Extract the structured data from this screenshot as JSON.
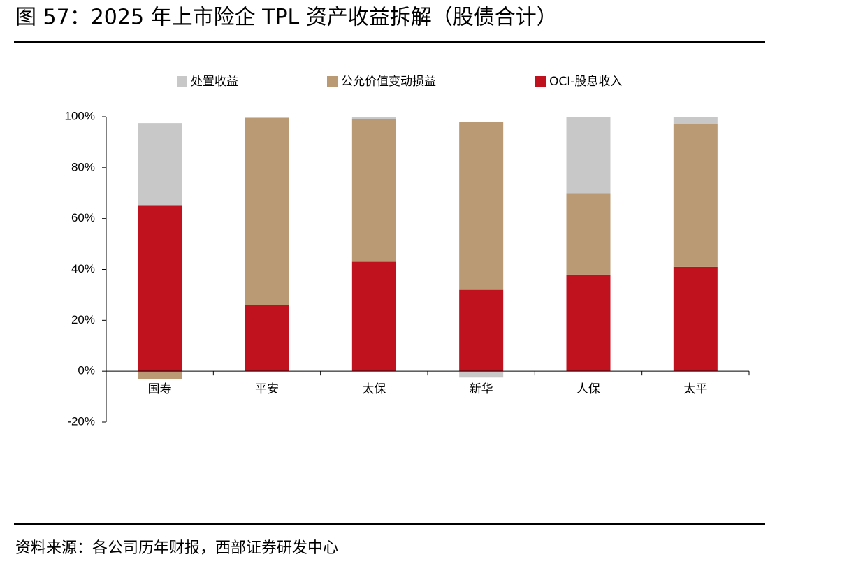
{
  "header": {
    "title": "图 57：2025 年上市险企 TPL 资产收益拆解（股债合计）"
  },
  "chart_data": {
    "type": "stacked-bar",
    "categories": [
      "国寿",
      "平安",
      "太保",
      "新华",
      "人保",
      "太平"
    ],
    "series": [
      {
        "name": "处置收益",
        "color": "#c8c8c8",
        "values": [
          32.5,
          0.5,
          1,
          -2.5,
          30,
          3
        ]
      },
      {
        "name": "公允价值变动损益",
        "color": "#b99a74",
        "values": [
          -3,
          73.5,
          56,
          66,
          32,
          56
        ]
      },
      {
        "name": "OCI-股息收入",
        "color": "#c0111f",
        "values": [
          65,
          26,
          43,
          32,
          38,
          41
        ]
      }
    ],
    "ylim": [
      -20,
      100
    ],
    "yticks": [
      {
        "value": -20,
        "label": "-20%"
      },
      {
        "value": 0,
        "label": "0%"
      },
      {
        "value": 20,
        "label": "20%"
      },
      {
        "value": 40,
        "label": "40%"
      },
      {
        "value": 60,
        "label": "60%"
      },
      {
        "value": 80,
        "label": "80%"
      },
      {
        "value": 100,
        "label": "100%"
      }
    ],
    "grid": false
  },
  "footer": {
    "source": "资料来源：各公司历年财报，西部证券研发中心"
  }
}
